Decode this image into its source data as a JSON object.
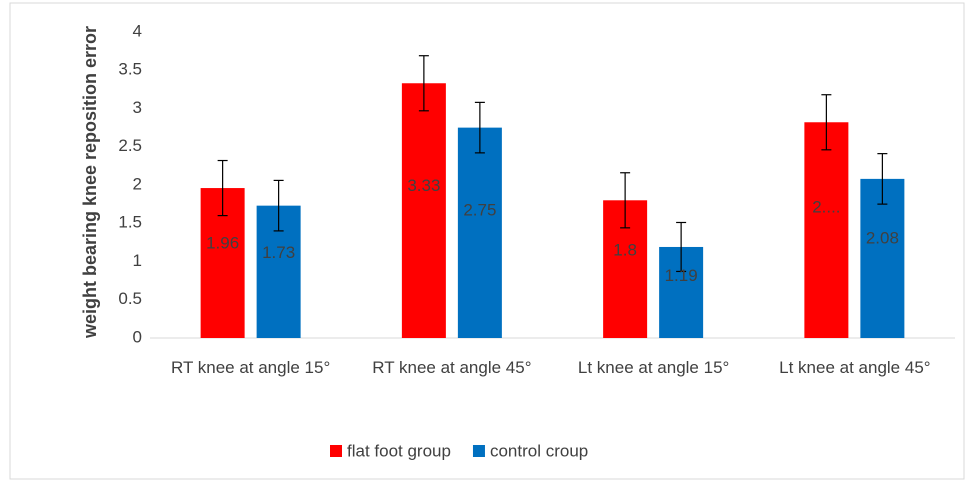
{
  "chart_data": {
    "type": "bar",
    "y_label": "weight bearing knee reposition error",
    "categories": [
      "RT knee at angle 15°",
      "RT knee at angle 45°",
      "Lt knee at angle 15°",
      "Lt knee at angle 45°"
    ],
    "series": [
      {
        "name": "flat foot group",
        "color": "#ff0000",
        "values": [
          1.96,
          3.33,
          1.8,
          2.82
        ],
        "value_labels": [
          "1.96",
          "3.33",
          "1.8",
          "2...."
        ],
        "errors": [
          0.36,
          0.36,
          0.36,
          0.36
        ]
      },
      {
        "name": "control croup",
        "color": "#0070c0",
        "values": [
          1.73,
          2.75,
          1.19,
          2.08
        ],
        "value_labels": [
          "1.73",
          "2.75",
          "1.19",
          "2.08"
        ],
        "errors": [
          0.33,
          0.33,
          0.32,
          0.33
        ]
      }
    ],
    "ylim": [
      0,
      4
    ],
    "yticks": [
      0,
      0.5,
      1,
      1.5,
      2,
      2.5,
      3,
      3.5,
      4
    ],
    "grid": false,
    "legend": "bottom"
  }
}
